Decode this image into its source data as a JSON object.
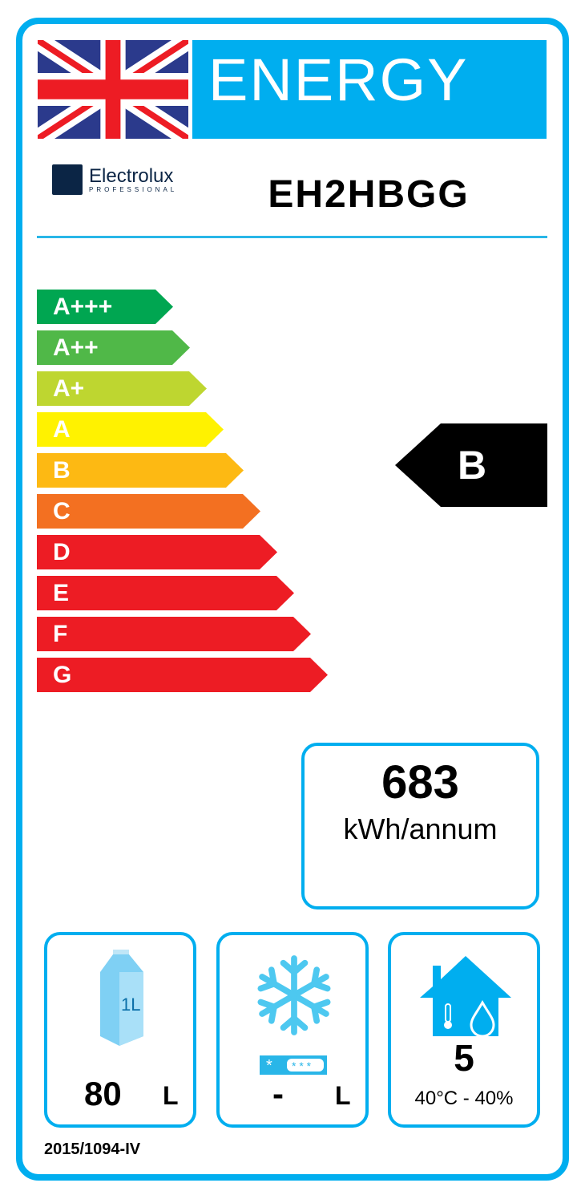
{
  "header": {
    "title": "ENERGY",
    "flag": "uk-flag",
    "brand": "Electrolux",
    "brand_sub": "PROFESSIONAL",
    "model": "EH2HBGG"
  },
  "scale": {
    "classes": [
      {
        "label": "A+++",
        "color": "#00A651"
      },
      {
        "label": "A++",
        "color": "#50B848"
      },
      {
        "label": "A+",
        "color": "#BED630"
      },
      {
        "label": "A",
        "color": "#FFF200"
      },
      {
        "label": "B",
        "color": "#FDB913"
      },
      {
        "label": "C",
        "color": "#F37021"
      },
      {
        "label": "D",
        "color": "#ED1C24"
      },
      {
        "label": "E",
        "color": "#ED1C24"
      },
      {
        "label": "F",
        "color": "#ED1C24"
      },
      {
        "label": "G",
        "color": "#ED1C24"
      }
    ],
    "rating": "B"
  },
  "consumption": {
    "value": "683",
    "unit": "kWh/annum"
  },
  "chilled": {
    "icon": "milk-carton-icon",
    "carton_label": "1L",
    "value": "80",
    "unit": "L"
  },
  "frozen": {
    "icon": "snowflake-icon",
    "value": "-",
    "unit": "L"
  },
  "climate": {
    "icon": "house-climate-icon",
    "class": "5",
    "conditions": "40°C - 40%"
  },
  "regulation": "2015/1094-IV",
  "accent": "#00AEEF"
}
